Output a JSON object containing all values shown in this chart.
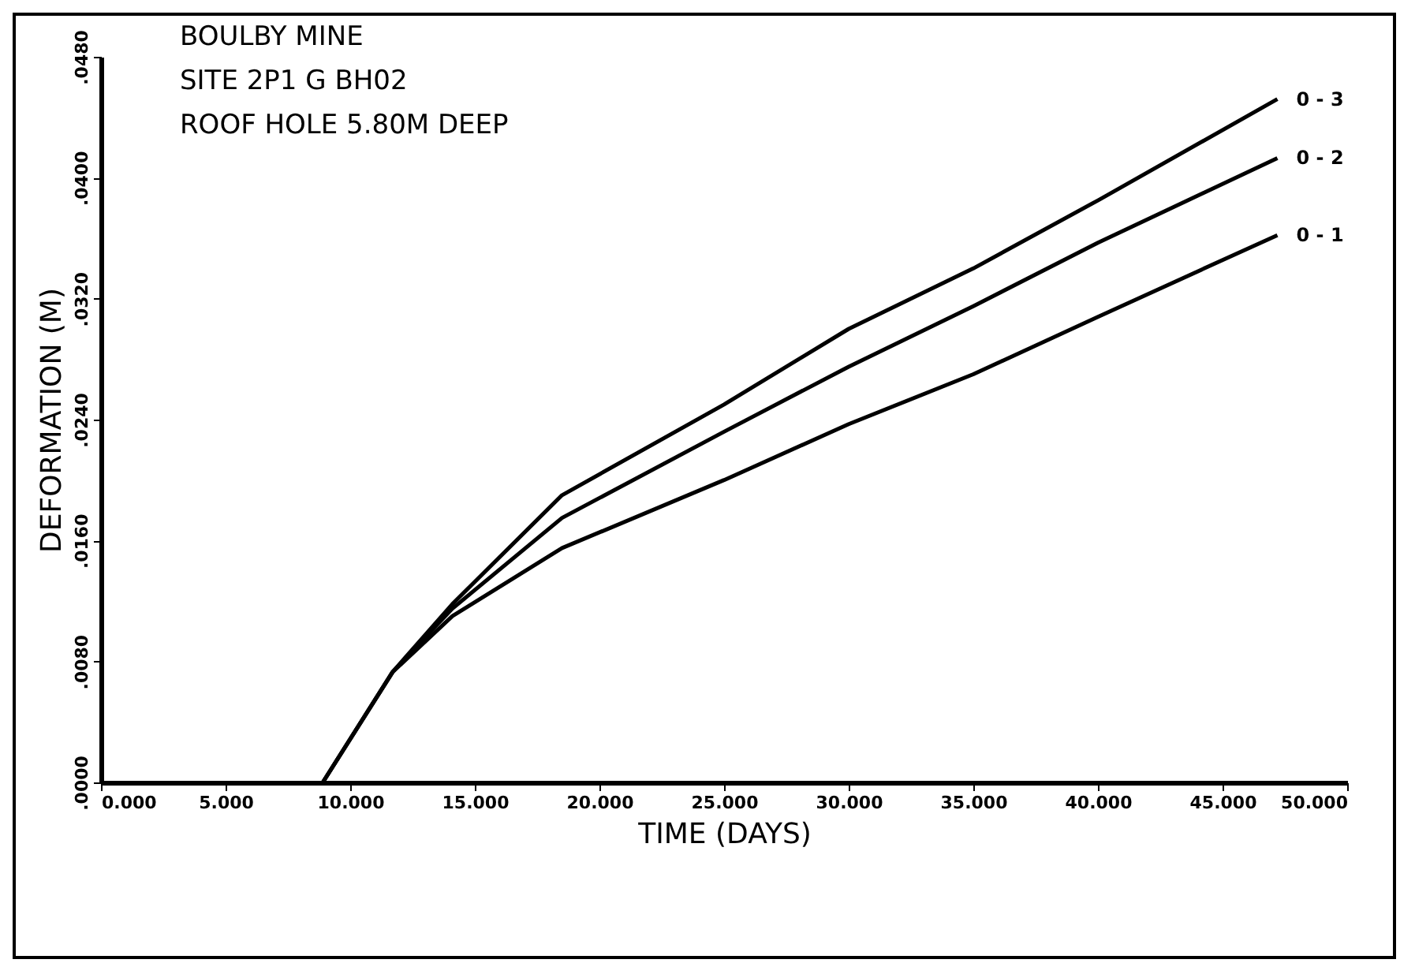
{
  "chart_data": {
    "type": "line",
    "title": [
      "BOULBY MINE",
      "SITE 2P1   G   BH02",
      "ROOF HOLE    5.80M DEEP"
    ],
    "xlabel": "TIME (DAYS)",
    "ylabel": "DEFORMATION (M)",
    "xlim": [
      0,
      50
    ],
    "ylim": [
      0,
      0.048
    ],
    "xticks": [
      {
        "value": 0,
        "label": "0.000"
      },
      {
        "value": 5,
        "label": "5.000"
      },
      {
        "value": 10,
        "label": "10.000"
      },
      {
        "value": 15,
        "label": "15.000"
      },
      {
        "value": 20,
        "label": "20.000"
      },
      {
        "value": 25,
        "label": "25.000"
      },
      {
        "value": 30,
        "label": "30.000"
      },
      {
        "value": 35,
        "label": "35.000"
      },
      {
        "value": 40,
        "label": "40.000"
      },
      {
        "value": 45,
        "label": "45.000"
      },
      {
        "value": 50,
        "label": "50.000"
      }
    ],
    "yticks": [
      {
        "value": 0,
        "label": ".0000"
      },
      {
        "value": 0.008,
        "label": ".0080"
      },
      {
        "value": 0.016,
        "label": ".0160"
      },
      {
        "value": 0.024,
        "label": ".0240"
      },
      {
        "value": 0.032,
        "label": ".0320"
      },
      {
        "value": 0.04,
        "label": ".0400"
      },
      {
        "value": 0.048,
        "label": ".0480"
      }
    ],
    "grid": false,
    "legend": false,
    "marker": "none",
    "line_style": "solid",
    "series": [
      {
        "name": "0 - 1",
        "color": "#000000",
        "x": [
          8.9,
          11.7,
          14.1,
          18.5,
          25,
          30,
          35,
          40,
          47.2
        ],
        "values": [
          0,
          0.0073,
          0.011,
          0.0155,
          0.02,
          0.0237,
          0.027,
          0.0308,
          0.0362
        ]
      },
      {
        "name": "0 - 2",
        "color": "#000000",
        "x": [
          8.9,
          11.7,
          14.1,
          18.5,
          25,
          30,
          35,
          40,
          47.2
        ],
        "values": [
          0,
          0.0073,
          0.0115,
          0.0175,
          0.0232,
          0.0275,
          0.0315,
          0.0357,
          0.0413
        ]
      },
      {
        "name": "0 - 3",
        "color": "#000000",
        "x": [
          8.9,
          11.7,
          14.1,
          18.5,
          25,
          30,
          35,
          40,
          47.2
        ],
        "values": [
          0,
          0.0073,
          0.0118,
          0.019,
          0.025,
          0.03,
          0.034,
          0.0385,
          0.0452
        ]
      }
    ]
  }
}
